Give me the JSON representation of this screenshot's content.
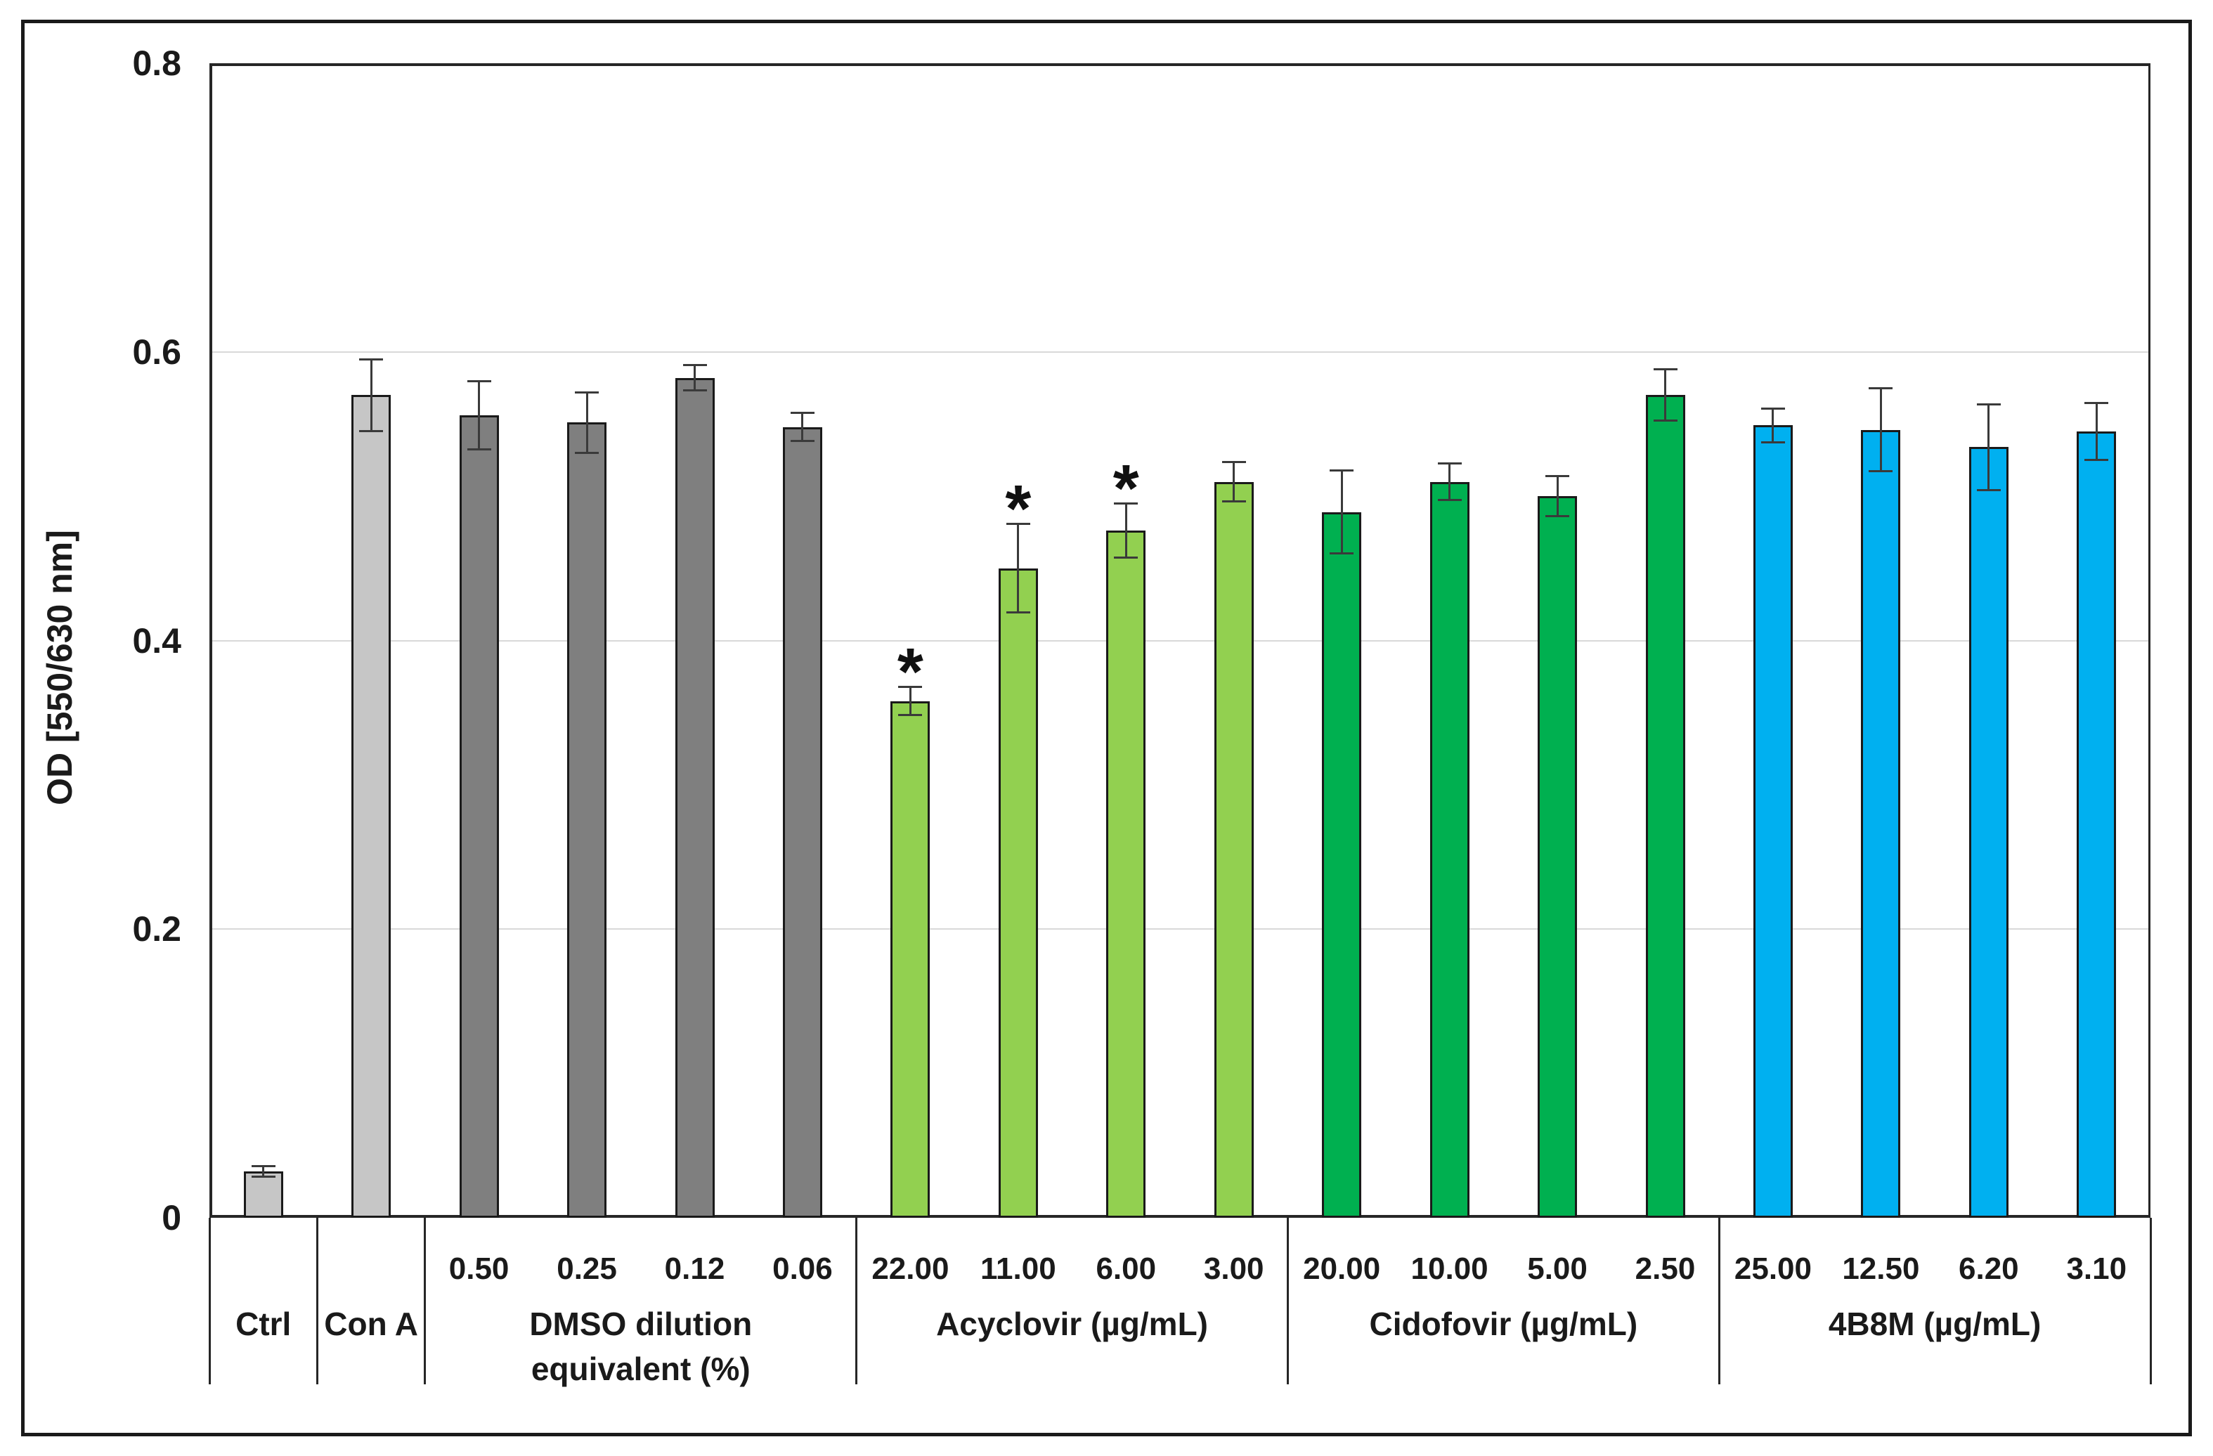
{
  "y_axis": {
    "title": "OD [550/630 nm]",
    "tick_labels": [
      "0",
      "0.2",
      "0.4",
      "0.6",
      "0.8"
    ]
  },
  "chart_data": {
    "type": "bar",
    "title": "",
    "xlabel": "",
    "ylabel": "OD [550/630 nm]",
    "ylim": [
      0,
      0.8
    ],
    "yticks": [
      0,
      0.2,
      0.4,
      0.6,
      0.8
    ],
    "ytick_labels": [
      "0",
      "0.2",
      "0.4",
      "0.6",
      "0.8"
    ],
    "grid": true,
    "legend": null,
    "significance_marker": "*",
    "error_bars": "plus-minus shown for every bar",
    "groups": [
      {
        "name_lines": [
          "Ctrl"
        ],
        "color": "#C6C6C6",
        "bars": [
          {
            "dose_label": "",
            "value": 0.032,
            "err": 0.004,
            "sig": false
          }
        ]
      },
      {
        "name_lines": [
          "Con A"
        ],
        "color": "#C6C6C6",
        "bars": [
          {
            "dose_label": "",
            "value": 0.57,
            "err": 0.025,
            "sig": false
          }
        ]
      },
      {
        "name_lines": [
          "DMSO dilution",
          "equivalent (%)"
        ],
        "color": "#7F7F7F",
        "bars": [
          {
            "dose_label": "0.50",
            "value": 0.556,
            "err": 0.024,
            "sig": false
          },
          {
            "dose_label": "0.25",
            "value": 0.551,
            "err": 0.021,
            "sig": false
          },
          {
            "dose_label": "0.12",
            "value": 0.582,
            "err": 0.009,
            "sig": false
          },
          {
            "dose_label": "0.06",
            "value": 0.548,
            "err": 0.01,
            "sig": false
          }
        ]
      },
      {
        "name_lines": [
          "Acyclovir  (µg/mL)"
        ],
        "color": "#92D050",
        "bars": [
          {
            "dose_label": "22.00",
            "value": 0.358,
            "err": 0.01,
            "sig": true
          },
          {
            "dose_label": "11.00",
            "value": 0.45,
            "err": 0.031,
            "sig": true
          },
          {
            "dose_label": "6.00",
            "value": 0.476,
            "err": 0.019,
            "sig": true
          },
          {
            "dose_label": "3.00",
            "value": 0.51,
            "err": 0.014,
            "sig": false
          }
        ]
      },
      {
        "name_lines": [
          "Cidofovir (µg/mL)"
        ],
        "color": "#00B050",
        "bars": [
          {
            "dose_label": "20.00",
            "value": 0.489,
            "err": 0.029,
            "sig": false
          },
          {
            "dose_label": "10.00",
            "value": 0.51,
            "err": 0.013,
            "sig": false
          },
          {
            "dose_label": "5.00",
            "value": 0.5,
            "err": 0.014,
            "sig": false
          },
          {
            "dose_label": "2.50",
            "value": 0.57,
            "err": 0.018,
            "sig": false
          }
        ]
      },
      {
        "name_lines": [
          "4B8M (µg/mL)"
        ],
        "color": "#00B0F0",
        "bars": [
          {
            "dose_label": "25.00",
            "value": 0.549,
            "err": 0.012,
            "sig": false
          },
          {
            "dose_label": "12.50",
            "value": 0.546,
            "err": 0.029,
            "sig": false
          },
          {
            "dose_label": "6.20",
            "value": 0.534,
            "err": 0.03,
            "sig": false
          },
          {
            "dose_label": "3.10",
            "value": 0.545,
            "err": 0.02,
            "sig": false
          }
        ]
      }
    ]
  },
  "style": {
    "background": "#FFFFFF",
    "figure_border": "#1A1A1A",
    "axis_color": "#262626",
    "grid_color": "#D9D9D9",
    "bar_border": "#1A1A1A",
    "error_color": "#3A3A3A",
    "bar_colors": {
      "control_gray": "#C6C6C6",
      "dmso_gray": "#7F7F7F",
      "acyclovir_light_green": "#92D050",
      "cidofovir_green": "#00B050",
      "fourb8m_blue": "#00B0F0"
    }
  }
}
